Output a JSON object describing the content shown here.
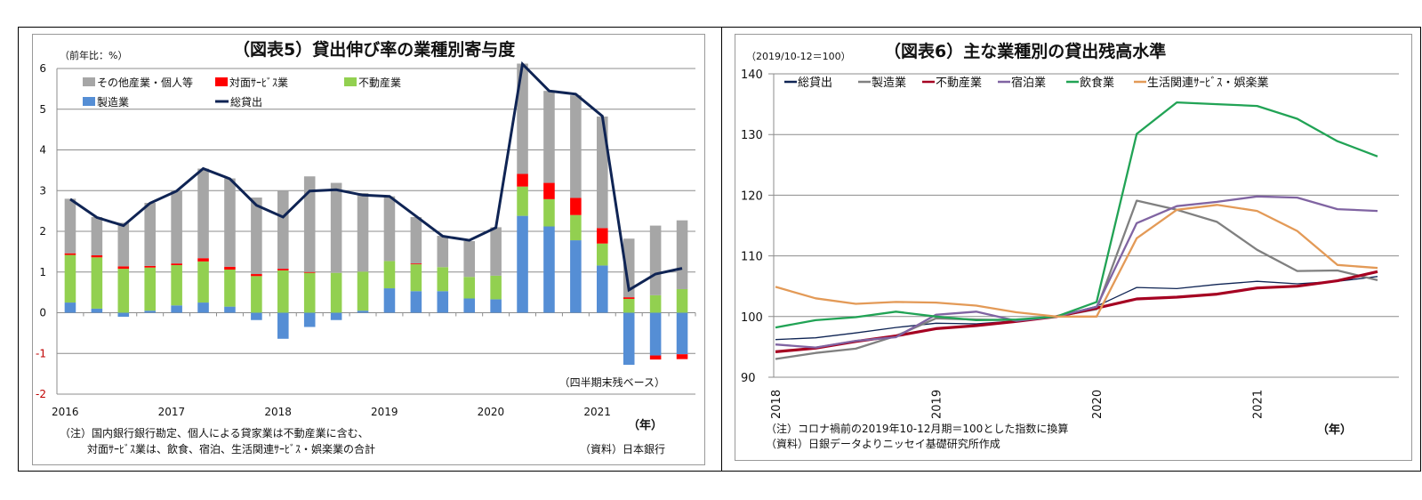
{
  "chart_data": [
    {
      "type": "bar",
      "stacked": true,
      "title": "（図表5）貸出伸び率の業種別寄与度",
      "ylabel": "（前年比：%）",
      "xlabel": "（年）",
      "ylim": [
        -2,
        6
      ],
      "yticks": [
        6,
        5,
        4,
        3,
        2,
        1,
        0,
        -1,
        -2
      ],
      "negative_tick_color": "#c00000",
      "xtick_labels": [
        "2016",
        "2017",
        "2018",
        "2019",
        "2020",
        "2021"
      ],
      "categories": [
        "2016Q1",
        "2016Q2",
        "2016Q3",
        "2016Q4",
        "2017Q1",
        "2017Q2",
        "2017Q3",
        "2017Q4",
        "2018Q1",
        "2018Q2",
        "2018Q3",
        "2018Q4",
        "2019Q1",
        "2019Q2",
        "2019Q3",
        "2019Q4",
        "2020Q1",
        "2020Q2",
        "2020Q3",
        "2020Q4",
        "2021Q1",
        "2021Q2",
        "2021Q3",
        "2021Q4"
      ],
      "grid": true,
      "legend_position": "top-left",
      "annotation": "（四半期末残ベース）",
      "note_lines": [
        "（注）国内銀行銀行勘定、個人による貸家業は不動産業に含む、",
        "対面ｻｰﾋﾞｽ業は、飲食、宿泊、生活関連ｻｰﾋﾞｽ・娯楽業の合計"
      ],
      "source": "（資料）日本銀行",
      "series": [
        {
          "name": "製造業",
          "color": "#558ed5",
          "values": [
            0.25,
            0.1,
            -0.1,
            0.05,
            0.18,
            0.25,
            0.15,
            -0.18,
            -0.64,
            -0.35,
            -0.18,
            0.05,
            0.6,
            0.53,
            0.53,
            0.35,
            0.33,
            2.38,
            2.12,
            1.78,
            1.16,
            -1.28,
            -1.05,
            -1.02
          ]
        },
        {
          "name": "不動産業",
          "color": "#92d050",
          "values": [
            1.17,
            1.26,
            1.08,
            1.06,
            0.99,
            1.01,
            0.91,
            0.9,
            1.04,
            0.98,
            0.98,
            0.96,
            0.67,
            0.66,
            0.59,
            0.53,
            0.58,
            0.72,
            0.67,
            0.62,
            0.54,
            0.34,
            0.43,
            0.58
          ]
        },
        {
          "name": "対面ｻｰﾋﾞｽ業",
          "color": "#ff0000",
          "values": [
            0.04,
            0.05,
            0.06,
            0.04,
            0.04,
            0.08,
            0.07,
            0.05,
            0.04,
            0.02,
            0.0,
            0.0,
            0.0,
            0.02,
            0.0,
            0.0,
            0.0,
            0.31,
            0.4,
            0.42,
            0.38,
            0.04,
            -0.1,
            -0.12
          ]
        },
        {
          "name": "その他産業・個人等",
          "color": "#a6a6a6",
          "values": [
            1.34,
            0.94,
            1.07,
            1.55,
            1.79,
            2.2,
            2.17,
            1.88,
            1.92,
            2.35,
            2.21,
            1.93,
            1.59,
            1.14,
            0.77,
            0.88,
            1.19,
            2.71,
            2.26,
            2.52,
            2.74,
            1.44,
            1.71,
            1.69
          ]
        }
      ],
      "line": {
        "name": "総貸出",
        "color": "#0f2454",
        "values": [
          2.79,
          2.34,
          2.14,
          2.69,
          2.99,
          3.54,
          3.29,
          2.64,
          2.35,
          2.99,
          3.02,
          2.89,
          2.86,
          2.37,
          1.88,
          1.78,
          2.09,
          6.11,
          5.45,
          5.37,
          4.83,
          0.56,
          0.95,
          1.09
        ]
      }
    },
    {
      "type": "line",
      "title": "（図表6）主な業種別の貸出残高水準",
      "ylabel": "（2019/10-12＝100）",
      "xlabel": "（年）",
      "ylim": [
        90,
        140
      ],
      "yticks": [
        140,
        130,
        120,
        110,
        100,
        90
      ],
      "xtick_labels": [
        "2018",
        "2019",
        "2020",
        "2021"
      ],
      "categories": [
        "2018Q1",
        "2018Q2",
        "2018Q3",
        "2018Q4",
        "2019Q1",
        "2019Q2",
        "2019Q3",
        "2019Q4",
        "2020Q1",
        "2020Q2",
        "2020Q3",
        "2020Q4",
        "2021Q1",
        "2021Q2",
        "2021Q3",
        "2021Q4"
      ],
      "grid": true,
      "legend_position": "top",
      "note_lines": [
        "（注）コロナ禍前の2019年10-12月期＝100とした指数に換算",
        "（資料）日銀データよりニッセイ基礎研究所作成"
      ],
      "series": [
        {
          "name": "総貸出",
          "color": "#0f2454",
          "values": [
            96.2,
            96.5,
            97.3,
            98.2,
            98.9,
            98.8,
            99.3,
            100.0,
            101.7,
            104.8,
            104.6,
            105.3,
            105.8,
            105.4,
            105.8,
            106.6
          ]
        },
        {
          "name": "製造業",
          "color": "#808080",
          "values": [
            93.0,
            94.0,
            94.7,
            96.8,
            99.7,
            99.5,
            99.4,
            100.0,
            101.2,
            119.1,
            117.6,
            115.6,
            111.0,
            107.5,
            107.6,
            106.0
          ]
        },
        {
          "name": "不動産業",
          "color": "#a50021",
          "values": [
            94.2,
            94.8,
            95.9,
            96.8,
            98.0,
            98.5,
            99.2,
            100.0,
            101.4,
            102.9,
            103.2,
            103.7,
            104.7,
            105.0,
            105.9,
            107.4
          ]
        },
        {
          "name": "宿泊業",
          "color": "#8064a2",
          "values": [
            95.4,
            94.9,
            96.0,
            96.6,
            100.3,
            100.8,
            99.3,
            100.0,
            101.6,
            115.4,
            118.2,
            118.9,
            119.8,
            119.6,
            117.7,
            117.4
          ]
        },
        {
          "name": "飲食業",
          "color": "#21a355",
          "values": [
            98.2,
            99.4,
            99.9,
            100.8,
            100.0,
            99.4,
            99.5,
            100.0,
            102.4,
            130.1,
            135.3,
            135.0,
            134.7,
            132.6,
            128.9,
            126.4
          ]
        },
        {
          "name": "生活関連ｻｰﾋﾞｽ・娯楽業",
          "color": "#e39a57",
          "values": [
            104.9,
            103.0,
            102.1,
            102.4,
            102.3,
            101.8,
            100.7,
            100.0,
            100.0,
            112.9,
            117.6,
            118.4,
            117.4,
            114.1,
            108.5,
            108.0
          ]
        }
      ]
    }
  ]
}
